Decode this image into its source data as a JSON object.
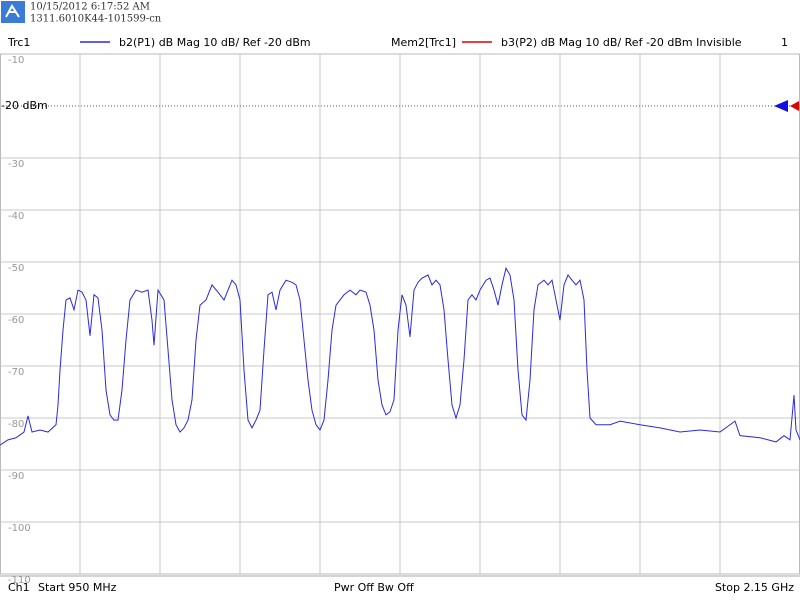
{
  "header": {
    "timestamp": "10/15/2012 6:17:52 AM",
    "device_id": "1311.6010K44-101599-cn"
  },
  "chart_data": {
    "type": "line",
    "trace_label": "Trc1",
    "channel_marker": "1",
    "memory_trace": {
      "label": "Mem2[Trc1]",
      "name": "b3(P2)  dB Mag  10 dB/ Ref -20 dBm  Invisible",
      "color": "#e00000"
    },
    "ref_level": -20,
    "xlim": [
      950,
      2150
    ],
    "ylim": [
      -110,
      -10
    ],
    "yticks": [
      -10,
      {
        "value": -20,
        "label": "-20 dBm"
      },
      -30,
      -40,
      -50,
      -60,
      -70,
      -80,
      -90,
      -100,
      -110
    ],
    "grid": true,
    "x": [
      950,
      962,
      974,
      986,
      992,
      998,
      1010,
      1022,
      1034,
      1037,
      1040,
      1044.5,
      1049,
      1055,
      1061,
      1067,
      1073,
      1079,
      1085,
      1091,
      1097,
      1103,
      1109,
      1115,
      1121,
      1127,
      1133,
      1139,
      1145,
      1154,
      1163,
      1172,
      1178,
      1181,
      1187,
      1196,
      1202,
      1208,
      1214,
      1220,
      1226,
      1232,
      1238,
      1244,
      1250,
      1259,
      1268,
      1277,
      1286,
      1292,
      1298,
      1304,
      1310,
      1316,
      1322,
      1328,
      1334,
      1340,
      1346,
      1352,
      1358,
      1364,
      1370,
      1379,
      1388,
      1394,
      1400,
      1406,
      1412,
      1418,
      1424,
      1430,
      1436,
      1442,
      1448,
      1454,
      1460,
      1466,
      1475,
      1484,
      1490,
      1499,
      1505,
      1511,
      1517,
      1523,
      1529,
      1535,
      1541,
      1547,
      1553,
      1559,
      1565,
      1571,
      1577,
      1583,
      1592,
      1598,
      1604,
      1610,
      1616,
      1622,
      1628,
      1634,
      1640,
      1646,
      1652,
      1658,
      1664,
      1670,
      1679,
      1685,
      1691,
      1697,
      1703,
      1709,
      1715,
      1721,
      1727,
      1733,
      1739,
      1745,
      1751,
      1757,
      1766,
      1772,
      1778,
      1784,
      1790,
      1796,
      1802,
      1808,
      1814,
      1820,
      1826,
      1830.5,
      1835,
      1844,
      1865,
      1880,
      1910,
      1940,
      1970,
      2000,
      2030,
      2052.5,
      2060,
      2090,
      2114,
      2126,
      2135,
      2141,
      2144,
      2150
    ],
    "series": [
      {
        "name": "b2(P1)  dB Mag  10 dB/ Ref -20 dBm",
        "color": "#2a2ae0",
        "values": [
          -85.2,
          -84.2,
          -83.8,
          -82.7,
          -79.6,
          -82.7,
          -82.3,
          -82.7,
          -81.3,
          -77.5,
          -70.8,
          -63.1,
          -57.3,
          -56.9,
          -59.2,
          -55.4,
          -55.8,
          -57.3,
          -64.2,
          -56.3,
          -56.9,
          -63.1,
          -74.6,
          -79.4,
          -80.4,
          -80.4,
          -74.6,
          -65.0,
          -57.3,
          -55.4,
          -55.8,
          -55.4,
          -61.2,
          -66.0,
          -55.4,
          -57.3,
          -66.9,
          -76.5,
          -81.3,
          -82.7,
          -81.9,
          -80.4,
          -76.5,
          -65.0,
          -58.3,
          -57.3,
          -54.4,
          -55.8,
          -57.3,
          -55.4,
          -53.5,
          -54.4,
          -57.3,
          -70.8,
          -80.4,
          -81.9,
          -80.4,
          -78.5,
          -66.9,
          -56.3,
          -55.8,
          -59.2,
          -55.4,
          -53.5,
          -53.9,
          -54.4,
          -57.3,
          -65.0,
          -72.7,
          -78.5,
          -81.3,
          -82.3,
          -80.4,
          -72.7,
          -63.1,
          -58.3,
          -57.3,
          -56.3,
          -55.4,
          -56.3,
          -55.4,
          -55.8,
          -58.3,
          -63.1,
          -72.7,
          -77.5,
          -79.4,
          -78.8,
          -76.5,
          -63.1,
          -56.3,
          -58.3,
          -64.4,
          -55.4,
          -53.9,
          -53.1,
          -52.5,
          -54.4,
          -53.5,
          -54.4,
          -59.2,
          -68.8,
          -77.5,
          -80.0,
          -77.5,
          -68.8,
          -57.3,
          -56.3,
          -57.3,
          -55.4,
          -53.5,
          -53.1,
          -55.4,
          -58.3,
          -54.4,
          -51.2,
          -52.5,
          -57.3,
          -70.8,
          -79.4,
          -80.4,
          -72.7,
          -59.2,
          -54.4,
          -53.5,
          -54.4,
          -53.5,
          -57.3,
          -61.2,
          -54.4,
          -52.5,
          -53.5,
          -54.4,
          -53.5,
          -57.3,
          -70.8,
          -80.0,
          -81.3,
          -81.3,
          -80.6,
          -81.3,
          -81.9,
          -82.7,
          -82.3,
          -82.7,
          -80.6,
          -83.4,
          -83.8,
          -84.6,
          -83.4,
          -84.2,
          -75.6,
          -82.3,
          -84.2
        ]
      }
    ]
  },
  "footer": {
    "channel": "Ch1",
    "start": "Start  950 MHz",
    "power": "Pwr  Off  Bw  Off",
    "stop": "Stop  2.15 GHz"
  }
}
